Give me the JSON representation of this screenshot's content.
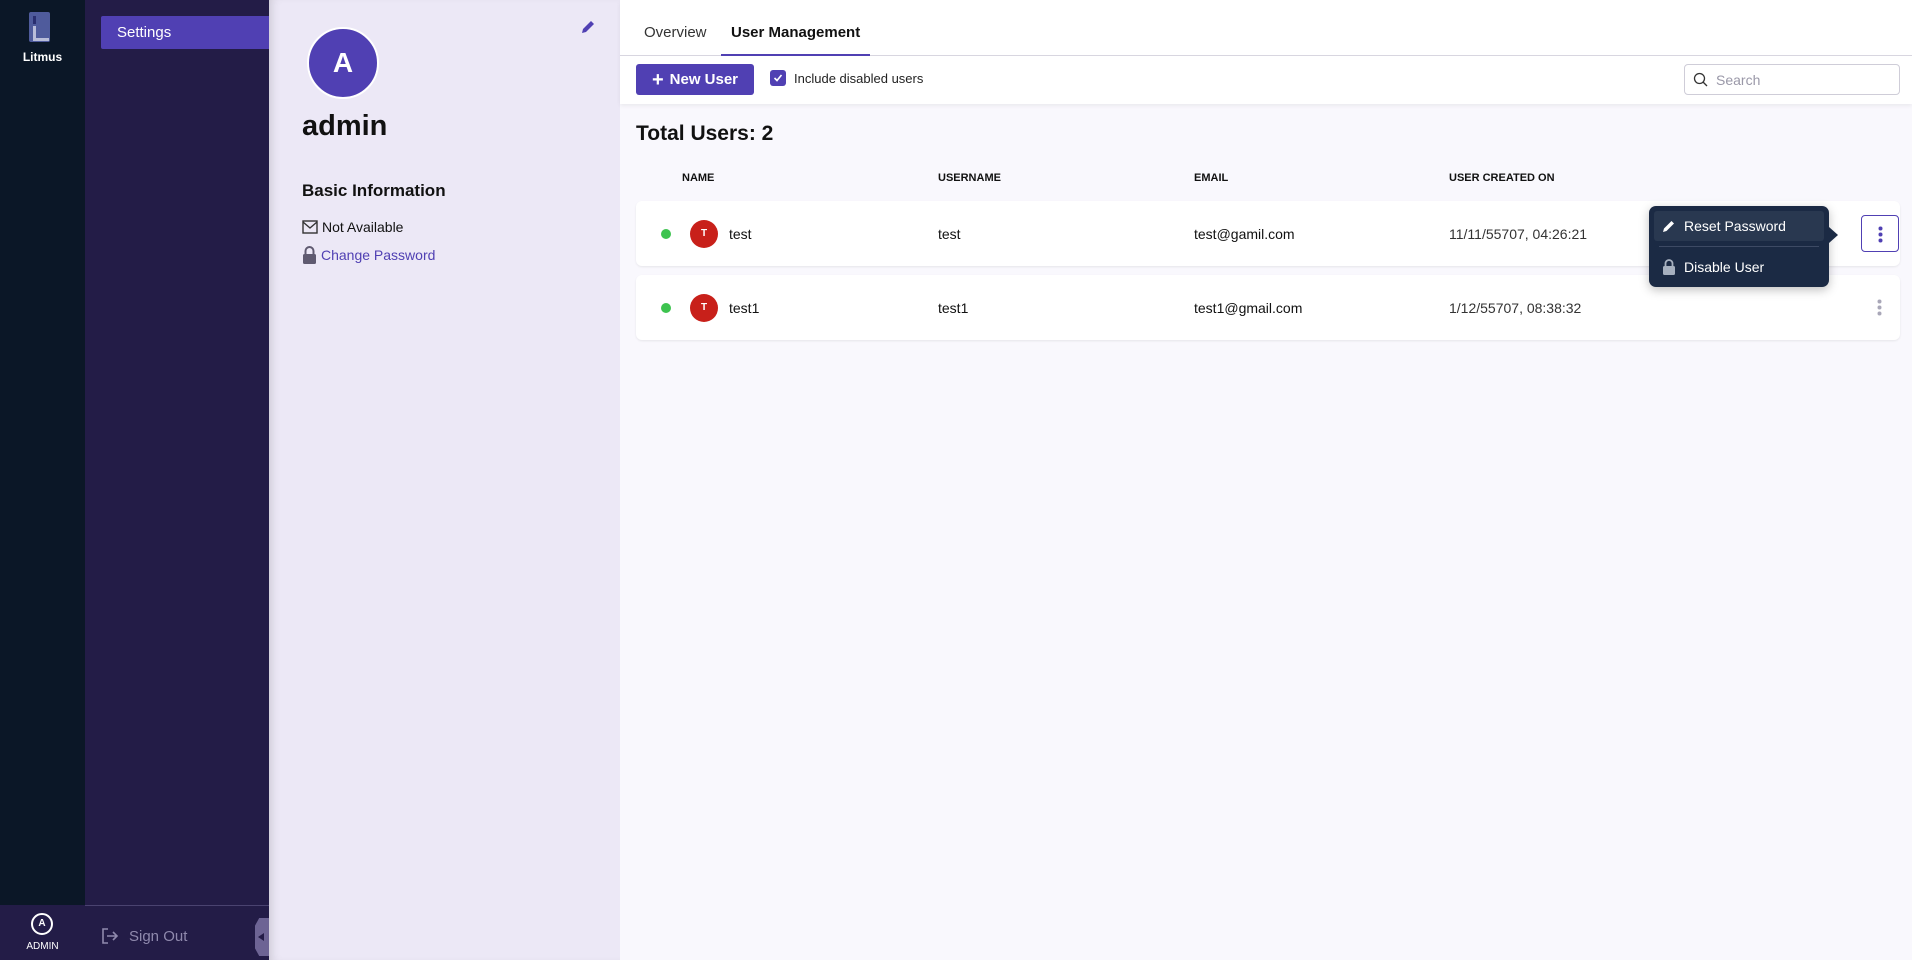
{
  "app": {
    "name": "Litmus",
    "user_badge": "ADMIN",
    "user_initial": "A"
  },
  "sidebar": {
    "items": [
      {
        "label": "Settings",
        "active": true
      }
    ],
    "sign_out": "Sign Out"
  },
  "profile": {
    "initial": "A",
    "name": "admin",
    "section_title": "Basic Information",
    "email": "Not Available",
    "change_password": "Change Password"
  },
  "tabs": [
    {
      "label": "Overview",
      "active": false
    },
    {
      "label": "User Management",
      "active": true
    }
  ],
  "toolbar": {
    "new_user": "New User",
    "include_disabled_label": "Include disabled users",
    "include_disabled_checked": true,
    "search_placeholder": "Search"
  },
  "total_users": "Total Users: 2",
  "table": {
    "headers": [
      "NAME",
      "USERNAME",
      "EMAIL",
      "USER CREATED ON"
    ],
    "rows": [
      {
        "status": "active",
        "initial": "T",
        "name": "test",
        "username": "test",
        "email": "test@gamil.com",
        "created": "11/11/55707, 04:26:21"
      },
      {
        "status": "active",
        "initial": "T",
        "name": "test1",
        "username": "test1",
        "email": "test1@gmail.com",
        "created": "1/12/55707, 08:38:32"
      }
    ]
  },
  "row_menu": {
    "items": [
      {
        "label": "Reset Password",
        "icon": "pencil-icon"
      },
      {
        "label": "Disable User",
        "icon": "lock-icon"
      }
    ]
  },
  "colors": {
    "accent": "#5040b3",
    "rail": "#0b1727",
    "sidebar": "#231c47",
    "status_active": "#3dc34f",
    "avatar": "#c8201a",
    "menu": "#1b2a44"
  }
}
